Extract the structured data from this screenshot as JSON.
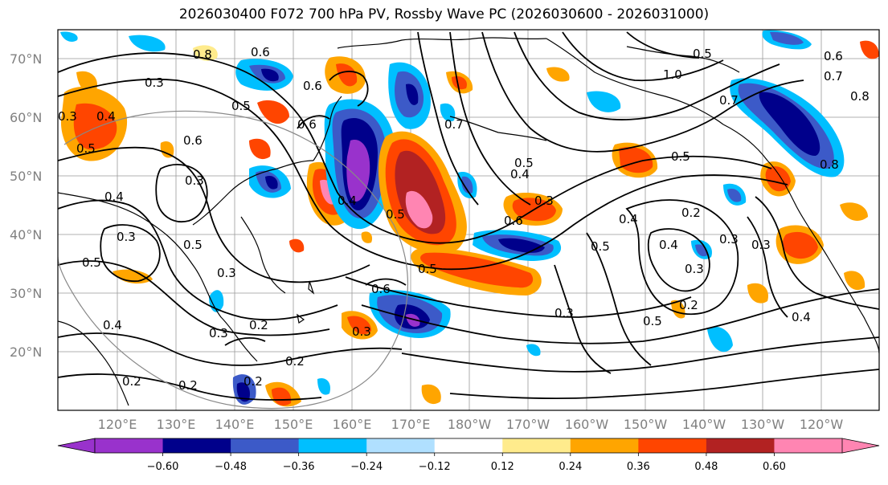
{
  "title": "2026030400 F072 700 hPa PV, Rossby Wave PC (2026030600 - 2026031000)",
  "lon_labels": [
    "120°E",
    "130°E",
    "140°E",
    "150°E",
    "160°E",
    "170°E",
    "180°W",
    "170°W",
    "160°W",
    "150°W",
    "140°W",
    "130°W",
    "120°W"
  ],
  "lat_labels": [
    "70°N",
    "60°N",
    "50°N",
    "40°N",
    "30°N",
    "20°N"
  ],
  "colorbar": {
    "colors": [
      "#9932cc",
      "#00008b",
      "#3c5ac8",
      "#00bfff",
      "#b0e0ff",
      "#ffffff",
      "#ffeb8c",
      "#ffa500",
      "#ff4500",
      "#b22222",
      "#ff85b2"
    ],
    "tick_labels": [
      "−0.60",
      "−0.48",
      "−0.36",
      "−0.24",
      "−0.12",
      "0.12",
      "0.24",
      "0.36",
      "0.48",
      "0.60"
    ]
  },
  "contour_labels": [
    "0.8",
    "0.6",
    "0.5",
    "0.5",
    "1.0",
    "0.6",
    "0.4",
    "0.5",
    "0.3",
    "0.4",
    "0.7",
    "0.3",
    "0.6",
    "0.4",
    "0.5",
    "0.6",
    "0.5",
    "0.2",
    "0.3",
    "0.2",
    "0.2",
    "0.3",
    "0.4",
    "0.3",
    "0.2",
    "0.5",
    "0.3",
    "0.2",
    "0.3",
    "0.4",
    "0.5",
    "0.4",
    "0.3",
    "0.2",
    "0.5",
    "0.3",
    "0.5",
    "0.3",
    "0.4",
    "0.5",
    "0.6",
    "0.3",
    "0.8",
    "0.7",
    "0.8",
    "0.4",
    "0.5",
    "0.6",
    "0.3",
    "0.6",
    "0.7",
    "0.2"
  ]
}
